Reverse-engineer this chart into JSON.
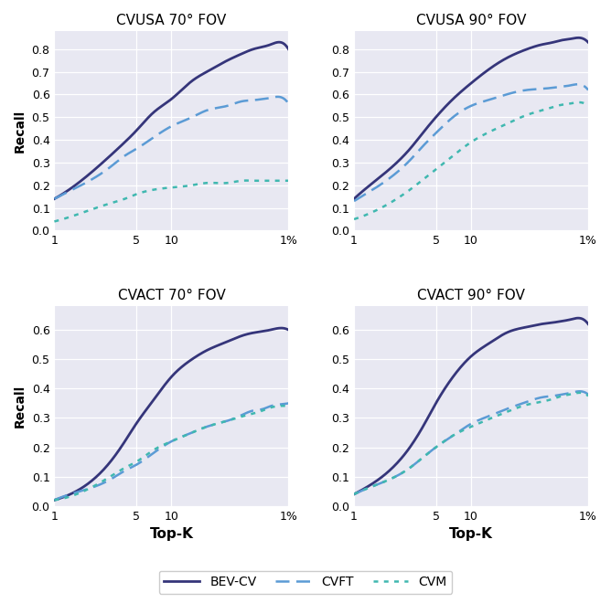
{
  "titles": [
    "CVUSA 70° FOV",
    "CVUSA 90° FOV",
    "CVACT 70° FOV",
    "CVACT 90° FOV"
  ],
  "xlabel": "Top-K",
  "ylabel": "Recall",
  "colors": {
    "BEV-CV": "#35357a",
    "CVFT": "#5b9bd5",
    "CVM": "#40b8b0"
  },
  "linestyles": {
    "BEV-CV": "solid",
    "CVFT": "dashed",
    "CVM": "dotted"
  },
  "linewidths": {
    "BEV-CV": 2.0,
    "CVFT": 1.8,
    "CVM": 1.8
  },
  "x_ticks": [
    1,
    5,
    10,
    100
  ],
  "x_tick_labels": [
    "1",
    "5",
    "10",
    "1%"
  ],
  "background_color": "#e8e8f2",
  "figure_background": "#ffffff",
  "cvusa_70_bevcv_x": [
    1,
    2,
    3,
    4,
    5,
    7,
    10,
    15,
    20,
    30,
    40,
    50,
    60,
    70,
    80,
    100
  ],
  "cvusa_70_bevcv_y": [
    0.14,
    0.25,
    0.33,
    0.39,
    0.44,
    0.52,
    0.58,
    0.66,
    0.7,
    0.75,
    0.78,
    0.8,
    0.81,
    0.82,
    0.83,
    0.8
  ],
  "cvusa_70_cvft_x": [
    1,
    2,
    3,
    4,
    5,
    7,
    10,
    15,
    20,
    30,
    40,
    50,
    60,
    70,
    80,
    100
  ],
  "cvusa_70_cvft_y": [
    0.14,
    0.22,
    0.28,
    0.33,
    0.36,
    0.41,
    0.46,
    0.5,
    0.53,
    0.55,
    0.57,
    0.575,
    0.58,
    0.585,
    0.59,
    0.56
  ],
  "cvusa_70_cvm_x": [
    1,
    2,
    3,
    4,
    5,
    7,
    10,
    15,
    20,
    30,
    40,
    50,
    60,
    70,
    80,
    100
  ],
  "cvusa_70_cvm_y": [
    0.04,
    0.09,
    0.12,
    0.14,
    0.16,
    0.18,
    0.19,
    0.2,
    0.21,
    0.21,
    0.22,
    0.22,
    0.22,
    0.22,
    0.22,
    0.22
  ],
  "cvusa_90_bevcv_x": [
    1,
    2,
    3,
    4,
    5,
    7,
    10,
    15,
    20,
    30,
    40,
    50,
    60,
    70,
    80,
    100
  ],
  "cvusa_90_bevcv_y": [
    0.14,
    0.27,
    0.36,
    0.44,
    0.5,
    0.58,
    0.65,
    0.72,
    0.76,
    0.8,
    0.82,
    0.83,
    0.84,
    0.845,
    0.85,
    0.83
  ],
  "cvusa_90_cvft_x": [
    1,
    2,
    3,
    4,
    5,
    7,
    10,
    15,
    20,
    30,
    40,
    50,
    60,
    70,
    80,
    100
  ],
  "cvusa_90_cvft_y": [
    0.13,
    0.23,
    0.31,
    0.38,
    0.43,
    0.5,
    0.55,
    0.58,
    0.6,
    0.62,
    0.625,
    0.63,
    0.635,
    0.64,
    0.645,
    0.62
  ],
  "cvusa_90_cvm_x": [
    1,
    2,
    3,
    4,
    5,
    7,
    10,
    15,
    20,
    30,
    40,
    50,
    60,
    70,
    80,
    100
  ],
  "cvusa_90_cvm_y": [
    0.05,
    0.12,
    0.18,
    0.23,
    0.27,
    0.33,
    0.39,
    0.44,
    0.47,
    0.51,
    0.53,
    0.545,
    0.555,
    0.56,
    0.565,
    0.55
  ],
  "cvact_70_bevcv_x": [
    1,
    2,
    3,
    4,
    5,
    7,
    10,
    15,
    20,
    30,
    40,
    50,
    60,
    70,
    80,
    100
  ],
  "cvact_70_bevcv_y": [
    0.02,
    0.08,
    0.15,
    0.22,
    0.28,
    0.36,
    0.44,
    0.5,
    0.53,
    0.56,
    0.58,
    0.59,
    0.595,
    0.6,
    0.605,
    0.6
  ],
  "cvact_70_cvft_x": [
    1,
    2,
    3,
    4,
    5,
    7,
    10,
    15,
    20,
    30,
    40,
    50,
    60,
    70,
    80,
    100
  ],
  "cvact_70_cvft_y": [
    0.02,
    0.06,
    0.09,
    0.12,
    0.14,
    0.18,
    0.22,
    0.25,
    0.27,
    0.29,
    0.31,
    0.325,
    0.33,
    0.34,
    0.345,
    0.35
  ],
  "cvact_70_cvm_x": [
    1,
    2,
    3,
    4,
    5,
    7,
    10,
    15,
    20,
    30,
    40,
    50,
    60,
    70,
    80,
    100
  ],
  "cvact_70_cvm_y": [
    0.02,
    0.06,
    0.1,
    0.13,
    0.15,
    0.19,
    0.22,
    0.25,
    0.27,
    0.29,
    0.305,
    0.315,
    0.325,
    0.335,
    0.34,
    0.34
  ],
  "cvact_90_bevcv_x": [
    1,
    2,
    3,
    4,
    5,
    7,
    10,
    15,
    20,
    30,
    40,
    50,
    60,
    70,
    80,
    100
  ],
  "cvact_90_bevcv_y": [
    0.04,
    0.12,
    0.2,
    0.28,
    0.35,
    0.44,
    0.51,
    0.56,
    0.59,
    0.61,
    0.62,
    0.625,
    0.63,
    0.635,
    0.64,
    0.62
  ],
  "cvact_90_cvft_x": [
    1,
    2,
    3,
    4,
    5,
    7,
    10,
    15,
    20,
    30,
    40,
    50,
    60,
    70,
    80,
    100
  ],
  "cvact_90_cvft_y": [
    0.04,
    0.09,
    0.13,
    0.17,
    0.2,
    0.24,
    0.28,
    0.31,
    0.33,
    0.355,
    0.37,
    0.375,
    0.38,
    0.385,
    0.39,
    0.38
  ],
  "cvact_90_cvm_x": [
    1,
    2,
    3,
    4,
    5,
    7,
    10,
    15,
    20,
    30,
    40,
    50,
    60,
    70,
    80,
    100
  ],
  "cvact_90_cvm_y": [
    0.04,
    0.09,
    0.13,
    0.17,
    0.2,
    0.24,
    0.27,
    0.3,
    0.32,
    0.345,
    0.355,
    0.365,
    0.375,
    0.38,
    0.385,
    0.375
  ]
}
